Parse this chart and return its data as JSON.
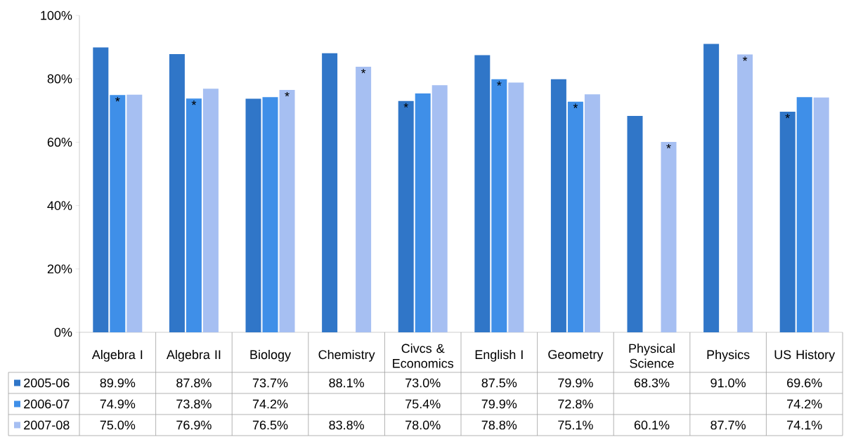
{
  "chart_data": {
    "type": "bar",
    "categories": [
      "Algebra I",
      "Algebra II",
      "Biology",
      "Chemistry",
      "Civcs & Economics",
      "English I",
      "Geometry",
      "Physical Science",
      "Physics",
      "US History"
    ],
    "series": [
      {
        "name": "2005-06",
        "color": "#3076c8",
        "values": [
          89.9,
          87.8,
          73.7,
          88.1,
          73.0,
          87.5,
          79.9,
          68.3,
          91.0,
          69.6
        ],
        "value_labels": [
          "89.9%",
          "87.8%",
          "73.7%",
          "88.1%",
          "73.0%",
          "87.5%",
          "79.9%",
          "68.3%",
          "91.0%",
          "69.6%"
        ]
      },
      {
        "name": "2006-07",
        "color": "#3f8fe8",
        "values": [
          74.9,
          73.8,
          74.2,
          null,
          75.4,
          79.9,
          72.8,
          null,
          null,
          74.2
        ],
        "value_labels": [
          "74.9%",
          "73.8%",
          "74.2%",
          null,
          "75.4%",
          "79.9%",
          "72.8%",
          null,
          null,
          "74.2%"
        ]
      },
      {
        "name": "2007-08",
        "color": "#a6bff2",
        "values": [
          75.0,
          76.9,
          76.5,
          83.8,
          78.0,
          78.8,
          75.1,
          60.1,
          87.7,
          74.1
        ],
        "value_labels": [
          "75.0%",
          "76.9%",
          "76.5%",
          "83.8%",
          "78.0%",
          "78.8%",
          "75.1%",
          "60.1%",
          "87.7%",
          "74.1%"
        ]
      }
    ],
    "ylim": [
      0,
      100
    ],
    "yticks": [
      {
        "value": 0,
        "label": "0%"
      },
      {
        "value": 20,
        "label": "20%"
      },
      {
        "value": 40,
        "label": "40%"
      },
      {
        "value": 60,
        "label": "60%"
      },
      {
        "value": 80,
        "label": "80%"
      },
      {
        "value": 100,
        "label": "100%"
      }
    ],
    "annotations": [
      {
        "text": "*",
        "x": "Algebra I",
        "y": 74.9
      },
      {
        "text": "*",
        "x": "Algebra II",
        "y": 73.8
      },
      {
        "text": "*",
        "y": 76.5
      },
      {
        "text": "*",
        "y": 83.8
      },
      {
        "text": "*",
        "y": 73.0
      },
      {
        "text": "*",
        "x": "English I",
        "y": 79.9
      },
      {
        "text": "*",
        "x": "Geometry",
        "y": 72.8
      },
      {
        "text": "*",
        "y": 60.1
      },
      {
        "text": "*",
        "y": 87.7
      },
      {
        "text": "*",
        "y": 69.6
      }
    ],
    "legend": "bottom",
    "grid": false
  }
}
